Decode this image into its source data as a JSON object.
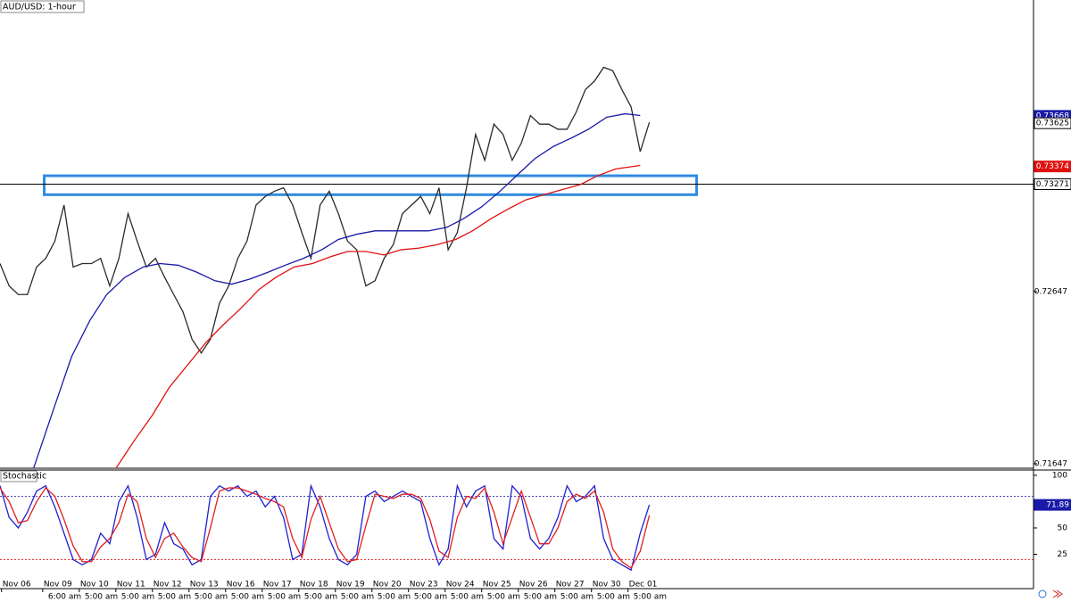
{
  "chart_data": [
    {
      "type": "line",
      "title": "AUD/USD: 1-hour",
      "xlim": [
        0,
        678
      ],
      "ylim": [
        0.71621,
        0.74341
      ],
      "yticks": [
        0.72647,
        0.71647
      ],
      "xticks": [
        {
          "value": 1,
          "label": "Nov 06"
        },
        {
          "value": 28,
          "label": "Nov 09"
        },
        {
          "value": 52,
          "label": "Nov 10"
        },
        {
          "value": 76,
          "label": "Nov 11"
        },
        {
          "value": 100,
          "label": "Nov 12"
        },
        {
          "value": 124,
          "label": "Nov 13"
        },
        {
          "value": 148,
          "label": "Nov 16"
        },
        {
          "value": 172,
          "label": "Nov 17"
        },
        {
          "value": 196,
          "label": "Nov 18"
        },
        {
          "value": 220,
          "label": "Nov 19"
        },
        {
          "value": 244,
          "label": "Nov 20"
        },
        {
          "value": 268,
          "label": "Nov 23"
        },
        {
          "value": 292,
          "label": "Nov 24"
        },
        {
          "value": 316,
          "label": "Nov 25"
        },
        {
          "value": 340,
          "label": "Nov 26"
        },
        {
          "value": 364,
          "label": "Nov 27"
        },
        {
          "value": 388,
          "label": "Nov 30"
        },
        {
          "value": 412,
          "label": "Dec 01"
        }
      ],
      "xtick_times": [
        null,
        "6:00 am",
        "5:00 am",
        "5:00 am",
        "5:00 am",
        "5:00 am",
        "5:00 am",
        "5:00 am",
        "5:00 am",
        "5:00 am",
        "5:00 am",
        "5:00 am",
        "5:00 am",
        "5:00 am",
        "5:00 am",
        "5:00 am",
        "5:00 am",
        "5:00 am"
      ],
      "series": [
        {
          "color": "#2b2b2b",
          "x": [
            0,
            6,
            12,
            18,
            24,
            30,
            36,
            42,
            48,
            54,
            60,
            66,
            72,
            78,
            84,
            90,
            96,
            102,
            108,
            114,
            120,
            126,
            132,
            138,
            144,
            150,
            156,
            162,
            168,
            174,
            180,
            186,
            192,
            198,
            204,
            210,
            216,
            222,
            228,
            234,
            240,
            246,
            252,
            258,
            264,
            270,
            276,
            282,
            288,
            294,
            300,
            306,
            312,
            318,
            324,
            330,
            336,
            342,
            348,
            354,
            360,
            366,
            372,
            378,
            384,
            390,
            396,
            402,
            408,
            414,
            420,
            426
          ],
          "values": [
            0.7281,
            0.7268,
            0.7263,
            0.7263,
            0.7279,
            0.7284,
            0.7294,
            0.7315,
            0.7279,
            0.7281,
            0.7281,
            0.7284,
            0.7268,
            0.7284,
            0.731,
            0.7294,
            0.7279,
            0.7284,
            0.7273,
            0.7263,
            0.7253,
            0.7237,
            0.7229,
            0.7237,
            0.7258,
            0.7268,
            0.7284,
            0.7294,
            0.7315,
            0.732,
            0.7323,
            0.7325,
            0.7315,
            0.7299,
            0.7284,
            0.7315,
            0.7323,
            0.731,
            0.7294,
            0.7289,
            0.7268,
            0.7271,
            0.7284,
            0.7292,
            0.731,
            0.7315,
            0.732,
            0.731,
            0.7325,
            0.7289,
            0.7299,
            0.7325,
            0.7356,
            0.7341,
            0.7362,
            0.7356,
            0.7341,
            0.7351,
            0.7367,
            0.7362,
            0.7362,
            0.7359,
            0.7359,
            0.7369,
            0.7382,
            0.7387,
            0.7395,
            0.7393,
            0.7382,
            0.7372,
            0.7346,
            0.7363
          ]
        },
        {
          "color": "#1a1aa8",
          "x": [
            22,
            35,
            47,
            59,
            70,
            82,
            94,
            105,
            117,
            129,
            141,
            152,
            164,
            176,
            187,
            199,
            211,
            222,
            234,
            246,
            258,
            269,
            281,
            293,
            304,
            316,
            328,
            340,
            351,
            363,
            375,
            386,
            398,
            410,
            420
          ],
          "values": [
            0.7162,
            0.7196,
            0.7227,
            0.7248,
            0.7263,
            0.7273,
            0.7279,
            0.7281,
            0.728,
            0.7276,
            0.7271,
            0.7269,
            0.7272,
            0.7276,
            0.728,
            0.7284,
            0.7289,
            0.7295,
            0.7298,
            0.73,
            0.73,
            0.73,
            0.73,
            0.7302,
            0.7307,
            0.7314,
            0.7323,
            0.7333,
            0.7342,
            0.7349,
            0.7354,
            0.7359,
            0.7366,
            0.7368,
            0.7367
          ]
        },
        {
          "color": "#e01010",
          "x": [
            76,
            88,
            100,
            111,
            123,
            135,
            146,
            158,
            170,
            181,
            193,
            205,
            217,
            228,
            240,
            252,
            263,
            275,
            287,
            299,
            310,
            322,
            334,
            345,
            357,
            369,
            381,
            392,
            404,
            420
          ],
          "values": [
            0.7162,
            0.7178,
            0.7193,
            0.7209,
            0.7222,
            0.7235,
            0.7245,
            0.7255,
            0.7266,
            0.7273,
            0.7279,
            0.7281,
            0.7285,
            0.7288,
            0.7288,
            0.7286,
            0.7289,
            0.729,
            0.7292,
            0.7295,
            0.73,
            0.7307,
            0.7313,
            0.7318,
            0.7321,
            0.7324,
            0.7327,
            0.7332,
            0.7336,
            0.7338
          ]
        }
      ],
      "hline": 0.73271,
      "zone": {
        "x": [
          29,
          457
        ],
        "y": [
          0.7321,
          0.7332
        ],
        "color": "#2e8be0"
      },
      "markers": [
        {
          "value": 0.73668,
          "color": "#1a1aa8"
        },
        {
          "value": 0.73625,
          "color": "#ffffff"
        },
        {
          "value": 0.73374,
          "color": "#e01010"
        }
      ]
    },
    {
      "type": "line",
      "title": "Stochastic",
      "xlim": [
        0,
        678
      ],
      "ylim": [
        -7.6,
        105
      ],
      "yticks": [
        100,
        50,
        25
      ],
      "levels": [
        {
          "value": 80,
          "color": "#4848b8"
        },
        {
          "value": 20,
          "color": "#e02020"
        }
      ],
      "series": [
        {
          "color": "#2020d0",
          "x": [
            0,
            6,
            12,
            18,
            24,
            30,
            36,
            42,
            48,
            54,
            60,
            66,
            72,
            78,
            84,
            90,
            96,
            102,
            108,
            114,
            120,
            126,
            132,
            138,
            144,
            150,
            156,
            162,
            168,
            174,
            180,
            186,
            192,
            198,
            204,
            210,
            216,
            222,
            228,
            234,
            240,
            246,
            252,
            258,
            264,
            270,
            276,
            282,
            288,
            294,
            300,
            306,
            312,
            318,
            324,
            330,
            336,
            342,
            348,
            354,
            360,
            366,
            372,
            378,
            384,
            390,
            396,
            402,
            408,
            414,
            420,
            426
          ],
          "values": [
            90,
            60,
            50,
            65,
            85,
            90,
            70,
            45,
            20,
            15,
            20,
            45,
            35,
            75,
            90,
            60,
            20,
            25,
            55,
            35,
            30,
            15,
            20,
            80,
            90,
            85,
            90,
            80,
            85,
            70,
            80,
            60,
            20,
            25,
            90,
            70,
            40,
            20,
            15,
            25,
            80,
            85,
            75,
            80,
            85,
            80,
            75,
            40,
            15,
            30,
            90,
            70,
            85,
            90,
            40,
            30,
            90,
            80,
            40,
            30,
            40,
            60,
            90,
            75,
            80,
            90,
            40,
            20,
            15,
            10,
            45,
            71.89
          ]
        },
        {
          "color": "#e02020",
          "x": [
            0,
            6,
            12,
            18,
            24,
            30,
            36,
            42,
            48,
            54,
            60,
            66,
            72,
            78,
            84,
            90,
            96,
            102,
            108,
            114,
            120,
            126,
            132,
            138,
            144,
            150,
            156,
            162,
            168,
            174,
            180,
            186,
            192,
            198,
            204,
            210,
            216,
            222,
            228,
            234,
            240,
            246,
            252,
            258,
            264,
            270,
            276,
            282,
            288,
            294,
            300,
            306,
            312,
            318,
            324,
            330,
            336,
            342,
            348,
            354,
            360,
            366,
            372,
            378,
            384,
            390,
            396,
            402,
            408,
            414,
            420,
            426
          ],
          "values": [
            88,
            75,
            55,
            57,
            75,
            88,
            80,
            58,
            33,
            18,
            18,
            32,
            40,
            55,
            82,
            75,
            40,
            22,
            40,
            45,
            32,
            22,
            18,
            50,
            85,
            88,
            88,
            85,
            82,
            78,
            75,
            70,
            40,
            22,
            58,
            80,
            55,
            30,
            18,
            20,
            52,
            82,
            80,
            78,
            82,
            82,
            78,
            58,
            28,
            22,
            60,
            80,
            78,
            88,
            65,
            35,
            60,
            85,
            60,
            35,
            35,
            50,
            75,
            82,
            78,
            85,
            65,
            30,
            18,
            12,
            28,
            62
          ]
        }
      ],
      "markers": [
        {
          "value": 71.89,
          "color": "#1a1aa8"
        }
      ]
    }
  ]
}
